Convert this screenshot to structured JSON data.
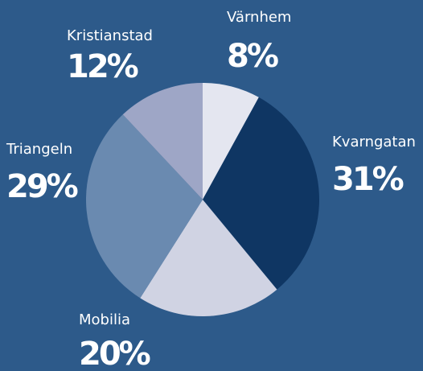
{
  "chart_data": {
    "type": "pie",
    "categories": [
      "Värnhem",
      "Kvarngatan",
      "Mobilia",
      "Triangeln",
      "Kristianstad"
    ],
    "values": [
      8,
      31,
      20,
      29,
      12
    ],
    "value_labels": [
      "8%",
      "31%",
      "20%",
      "29%",
      "12%"
    ],
    "colors": [
      "#e4e6f0",
      "#0f3663",
      "#d0d3e3",
      "#6a8ab0",
      "#9ea6c6"
    ]
  }
}
